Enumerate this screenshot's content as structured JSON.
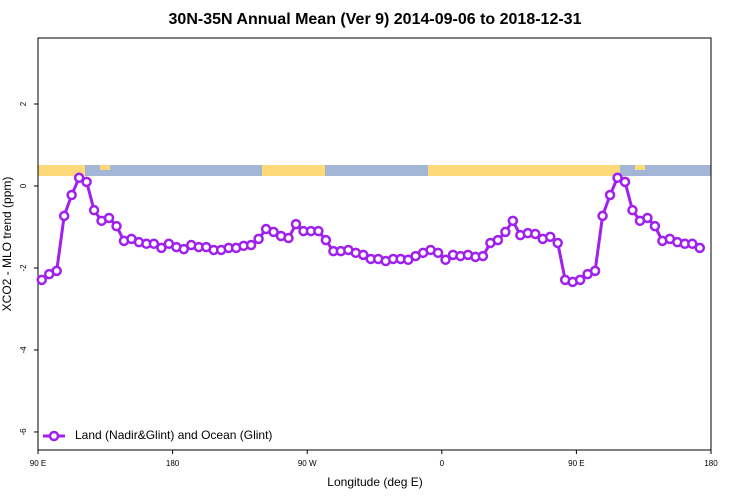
{
  "chart_data": {
    "type": "line",
    "title": "30N-35N Annual Mean (Ver 9)   2014-09-06 to 2018-12-31",
    "x_label": "Longitude (deg E)",
    "y_label": "XCO2 - MLO trend (ppm)",
    "xlim": [
      90,
      540
    ],
    "xticks": [
      {
        "value": 90,
        "label": "90 E"
      },
      180,
      {
        "value": 270,
        "label": "90 W"
      },
      {
        "value": 360,
        "label": "0"
      },
      {
        "value": 450,
        "label": "90 E"
      },
      {
        "value": 540,
        "label": "180"
      }
    ],
    "ylim": [
      -6.44,
      3.61
    ],
    "yticks": [
      2,
      0,
      -2,
      -4,
      -6
    ],
    "legend": "bottom-left",
    "x": [
      92.5,
      97.5,
      102.5,
      107.5,
      112.5,
      117.5,
      122.5,
      127.5,
      132.5,
      137.5,
      142.5,
      147.5,
      152.5,
      157.5,
      162.5,
      167.5,
      172.5,
      177.5,
      182.5,
      187.5,
      192.5,
      197.5,
      202.5,
      207.5,
      212.5,
      217.5,
      222.5,
      227.5,
      232.5,
      237.5,
      242.5,
      247.5,
      252.5,
      257.5,
      262.5,
      267.5,
      272.5,
      277.5,
      282.5,
      287.5,
      292.5,
      297.5,
      302.5,
      307.5,
      312.5,
      317.5,
      322.5,
      327.5,
      332.5,
      337.5,
      342.5,
      347.5,
      352.5,
      357.5,
      362.5,
      367.5,
      372.5,
      377.5,
      382.5,
      387.5,
      392.5,
      397.5,
      402.5,
      407.5,
      412.5,
      417.5,
      422.5,
      427.5,
      432.5,
      437.5,
      442.5,
      447.5,
      452.5,
      457.5,
      462.5,
      467.5,
      472.5,
      477.5,
      482.5,
      487.5,
      492.5,
      497.5,
      502.5,
      507.5,
      512.5,
      517.5,
      522.5,
      527.5,
      532.5
    ],
    "series": [
      {
        "name": "Land (Nadir&Glint) and Ocean (Glint)",
        "color": "#a020f0",
        "values": [
          -2.29,
          -2.15,
          -2.07,
          -0.73,
          -0.22,
          0.2,
          0.1,
          -0.59,
          -0.85,
          -0.78,
          -0.98,
          -1.34,
          -1.29,
          -1.37,
          -1.41,
          -1.41,
          -1.51,
          -1.41,
          -1.49,
          -1.54,
          -1.44,
          -1.49,
          -1.49,
          -1.56,
          -1.56,
          -1.51,
          -1.51,
          -1.46,
          -1.44,
          -1.29,
          -1.05,
          -1.12,
          -1.22,
          -1.27,
          -0.93,
          -1.1,
          -1.1,
          -1.1,
          -1.32,
          -1.59,
          -1.59,
          -1.56,
          -1.63,
          -1.68,
          -1.78,
          -1.78,
          -1.83,
          -1.78,
          -1.78,
          -1.8,
          -1.71,
          -1.63,
          -1.56,
          -1.63,
          -1.8,
          -1.68,
          -1.71,
          -1.68,
          -1.73,
          -1.71,
          -1.39,
          -1.32,
          -1.12,
          -0.85,
          -1.2,
          -1.15,
          -1.17,
          -1.29,
          -1.24,
          -1.39,
          -2.29,
          -2.34,
          -2.29,
          -2.15,
          -2.07,
          -0.73,
          -0.22,
          0.2,
          0.1,
          -0.59,
          -0.85,
          -0.78,
          -0.98,
          -1.34,
          -1.29,
          -1.37,
          -1.41,
          -1.41,
          -1.51
        ]
      }
    ]
  }
}
